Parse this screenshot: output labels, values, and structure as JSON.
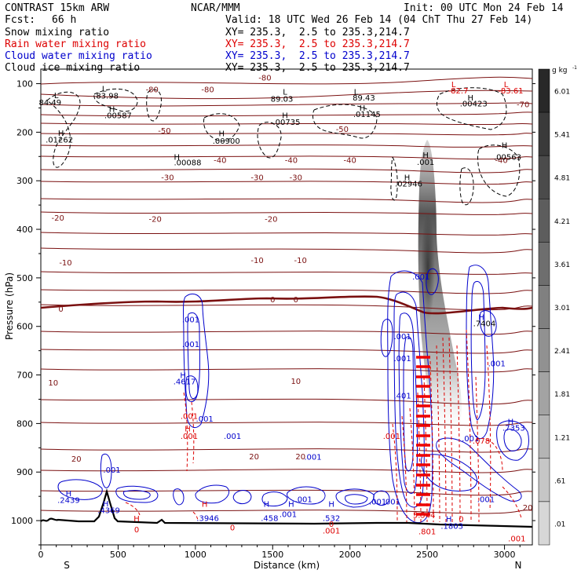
{
  "header": {
    "model": "CONTRAST 15km ARW",
    "center": "NCAR/MMM",
    "init": "Init: 00 UTC Mon 24 Feb 14",
    "fcst_label": "Fcst:",
    "fcst_value": "66 h",
    "valid": "Valid: 18 UTC Wed 26 Feb 14 (04 ChT Thu 27 Feb 14)",
    "fields": [
      {
        "name": "Snow mixing ratio",
        "xy": "XY= 235.3,  2.5 to 235.3,214.7",
        "color": "#000000"
      },
      {
        "name": "Rain water mixing ratio",
        "xy": "XY= 235.3,  2.5 to 235.3,214.7",
        "color": "#dd0000"
      },
      {
        "name": "Cloud water mixing ratio",
        "xy": "XY= 235.3,  2.5 to 235.3,214.7",
        "color": "#0000cc"
      },
      {
        "name": "Cloud ice mixing ratio",
        "xy": "XY= 235.3,  2.5 to 235.3,214.7",
        "color": "#000000"
      }
    ]
  },
  "chart_data": {
    "type": "cross-section",
    "xlabel": "Distance (km)",
    "ylabel": "Pressure (hPa)",
    "xlim": [
      0,
      3180
    ],
    "ylim": [
      1050,
      70
    ],
    "x_ticks": [
      0,
      500,
      1000,
      1500,
      2000,
      2500,
      3000
    ],
    "y_ticks": [
      100,
      200,
      300,
      400,
      500,
      600,
      700,
      800,
      900,
      1000
    ],
    "x_end_labels": {
      "left": "S",
      "right": "N"
    },
    "colorbar": {
      "unit": "g kg",
      "unit_exp": "-1",
      "labels": [
        "6.01",
        "5.41",
        "4.81",
        "4.21",
        "3.61",
        "3.01",
        "2.41",
        "1.81",
        "1.21",
        ".61",
        ".01"
      ]
    },
    "temperature_labels": [
      {
        "text": "-80",
        "x": 1450,
        "p": 87
      },
      {
        "text": "-80",
        "x": 720,
        "p": 111
      },
      {
        "text": "-80",
        "x": 1080,
        "p": 111
      },
      {
        "text": "-70",
        "x": 3120,
        "p": 142
      },
      {
        "text": "-50",
        "x": 800,
        "p": 196
      },
      {
        "text": "-50",
        "x": 1950,
        "p": 193
      },
      {
        "text": "-40",
        "x": 1160,
        "p": 257
      },
      {
        "text": "-40",
        "x": 1620,
        "p": 257
      },
      {
        "text": "-40",
        "x": 2000,
        "p": 257
      },
      {
        "text": "-40",
        "x": 2980,
        "p": 257
      },
      {
        "text": "-30",
        "x": 820,
        "p": 292
      },
      {
        "text": "-30",
        "x": 1400,
        "p": 292
      },
      {
        "text": "-30",
        "x": 1650,
        "p": 292
      },
      {
        "text": "-20",
        "x": 110,
        "p": 376
      },
      {
        "text": "-20",
        "x": 740,
        "p": 378
      },
      {
        "text": "-20",
        "x": 1490,
        "p": 378
      },
      {
        "text": "-10",
        "x": 160,
        "p": 468
      },
      {
        "text": "-10",
        "x": 1400,
        "p": 463
      },
      {
        "text": "-10",
        "x": 1680,
        "p": 463
      },
      {
        "text": "0",
        "x": 130,
        "p": 563
      },
      {
        "text": "0",
        "x": 1500,
        "p": 544
      },
      {
        "text": "0",
        "x": 1650,
        "p": 544
      },
      {
        "text": "10",
        "x": 80,
        "p": 715
      },
      {
        "text": "10",
        "x": 1650,
        "p": 712
      },
      {
        "text": "20",
        "x": 230,
        "p": 872
      },
      {
        "text": "20",
        "x": 1380,
        "p": 867
      },
      {
        "text": "20",
        "x": 1680,
        "p": 867
      },
      {
        "text": "20",
        "x": 3150,
        "p": 972
      }
    ],
    "extremum_labels": [
      {
        "text": "L",
        "x": 100,
        "p": 123,
        "color": "#000000"
      },
      {
        "text": "84.49",
        "x": 60,
        "p": 138,
        "color": "#000000"
      },
      {
        "text": "L",
        "x": 410,
        "p": 110,
        "color": "#000000"
      },
      {
        "text": "83.98",
        "x": 430,
        "p": 124,
        "color": "#000000"
      },
      {
        "text": "H",
        "x": 460,
        "p": 152,
        "color": "#000000"
      },
      {
        "text": ".00587",
        "x": 500,
        "p": 165,
        "color": "#000000"
      },
      {
        "text": "H",
        "x": 130,
        "p": 201,
        "color": "#000000"
      },
      {
        "text": ".01262",
        "x": 120,
        "p": 215,
        "color": "#000000"
      },
      {
        "text": "L",
        "x": 1580,
        "p": 116,
        "color": "#000000"
      },
      {
        "text": "89.03",
        "x": 1560,
        "p": 131,
        "color": "#000000"
      },
      {
        "text": "H",
        "x": 1580,
        "p": 165,
        "color": "#000000"
      },
      {
        "text": ".00735",
        "x": 1590,
        "p": 178,
        "color": "#000000"
      },
      {
        "text": "L",
        "x": 2040,
        "p": 116,
        "color": "#000000"
      },
      {
        "text": "89.43",
        "x": 2090,
        "p": 128,
        "color": "#000000"
      },
      {
        "text": "H",
        "x": 2080,
        "p": 149,
        "color": "#000000"
      },
      {
        "text": ".01145",
        "x": 2110,
        "p": 162,
        "color": "#000000"
      },
      {
        "text": "H",
        "x": 1170,
        "p": 202,
        "color": "#000000"
      },
      {
        "text": ".00900",
        "x": 1200,
        "p": 217,
        "color": "#000000"
      },
      {
        "text": "H",
        "x": 880,
        "p": 250,
        "color": "#000000"
      },
      {
        "text": ".00088",
        "x": 950,
        "p": 262,
        "color": "#000000"
      },
      {
        "text": "L",
        "x": 2670,
        "p": 101,
        "color": "#dd0000"
      },
      {
        "text": "-82.7",
        "x": 2700,
        "p": 114,
        "color": "#dd0000"
      },
      {
        "text": "L",
        "x": 3010,
        "p": 101,
        "color": "#dd0000"
      },
      {
        "text": "-83.61",
        "x": 3040,
        "p": 114,
        "color": "#dd0000"
      },
      {
        "text": "H",
        "x": 2780,
        "p": 128,
        "color": "#000000"
      },
      {
        "text": ".00423",
        "x": 2800,
        "p": 140,
        "color": "#000000"
      },
      {
        "text": "H",
        "x": 3000,
        "p": 226,
        "color": "#000000"
      },
      {
        "text": ".00563",
        "x": 3020,
        "p": 250,
        "color": "#000000"
      },
      {
        "text": "H",
        "x": 2490,
        "p": 246,
        "color": "#000000"
      },
      {
        "text": ".001",
        "x": 2490,
        "p": 261,
        "color": "#000000"
      },
      {
        "text": "H",
        "x": 2370,
        "p": 292,
        "color": "#000000"
      },
      {
        "text": ".02946",
        "x": 2380,
        "p": 305,
        "color": "#000000"
      },
      {
        "text": ".001",
        "x": 970,
        "p": 585,
        "color": "#0000cc"
      },
      {
        "text": ".001",
        "x": 970,
        "p": 636,
        "color": "#0000cc"
      },
      {
        "text": "H",
        "x": 920,
        "p": 700,
        "color": "#0000cc"
      },
      {
        "text": ".4617",
        "x": 930,
        "p": 713,
        "color": "#0000cc"
      },
      {
        "text": ".001",
        "x": 960,
        "p": 784,
        "color": "#dd0000"
      },
      {
        "text": ".001",
        "x": 1060,
        "p": 790,
        "color": "#0000cc"
      },
      {
        "text": "H",
        "x": 950,
        "p": 810,
        "color": "#dd0000"
      },
      {
        "text": ".001",
        "x": 960,
        "p": 825,
        "color": "#dd0000"
      },
      {
        "text": ".001",
        "x": 1240,
        "p": 825,
        "color": "#0000cc"
      },
      {
        "text": ".001",
        "x": 1760,
        "p": 868,
        "color": "#0000cc"
      },
      {
        "text": ".001",
        "x": 2460,
        "p": 497,
        "color": "#0000cc"
      },
      {
        "text": ".001",
        "x": 2340,
        "p": 620,
        "color": "#0000cc"
      },
      {
        "text": ".001",
        "x": 2340,
        "p": 665,
        "color": "#0000cc"
      },
      {
        "text": ".401",
        "x": 2340,
        "p": 742,
        "color": "#0000cc"
      },
      {
        "text": ".001",
        "x": 2270,
        "p": 825,
        "color": "#dd0000"
      },
      {
        "text": ".001",
        "x": 2270,
        "p": 960,
        "color": "#0000cc"
      },
      {
        "text": "5.544",
        "x": 2480,
        "p": 988,
        "color": "#dd0000"
      },
      {
        "text": ".801",
        "x": 2500,
        "p": 1022,
        "color": "#dd0000"
      },
      {
        "text": "H",
        "x": 2850,
        "p": 580,
        "color": "#0000cc"
      },
      {
        "text": ".7404",
        "x": 2870,
        "p": 593,
        "color": "#000000"
      },
      {
        "text": ".001",
        "x": 2950,
        "p": 676,
        "color": "#0000cc"
      },
      {
        "text": ".001",
        "x": 2780,
        "p": 830,
        "color": "#0000cc"
      },
      {
        "text": ".078",
        "x": 2850,
        "p": 835,
        "color": "#dd0000"
      },
      {
        "text": "H",
        "x": 3040,
        "p": 795,
        "color": "#0000cc"
      },
      {
        "text": ".7353",
        "x": 3060,
        "p": 808,
        "color": "#0000cc"
      },
      {
        "text": ".001",
        "x": 2880,
        "p": 955,
        "color": "#0000cc"
      },
      {
        "text": ".001",
        "x": 3080,
        "p": 1036,
        "color": "#dd0000"
      },
      {
        "text": "H",
        "x": 2640,
        "p": 996,
        "color": "#0000cc"
      },
      {
        "text": "0",
        "x": 2720,
        "p": 996,
        "color": "#dd0000"
      },
      {
        "text": ".1803",
        "x": 2660,
        "p": 1010,
        "color": "#0000cc"
      },
      {
        "text": "H",
        "x": 180,
        "p": 943,
        "color": "#0000cc"
      },
      {
        "text": ".2439",
        "x": 180,
        "p": 957,
        "color": "#0000cc"
      },
      {
        "text": ".001",
        "x": 460,
        "p": 895,
        "color": "#0000cc"
      },
      {
        "text": "H",
        "x": 420,
        "p": 964,
        "color": "#0000cc"
      },
      {
        "text": ".4369",
        "x": 440,
        "p": 978,
        "color": "#0000cc"
      },
      {
        "text": "H",
        "x": 620,
        "p": 995,
        "color": "#dd0000"
      },
      {
        "text": "0",
        "x": 620,
        "p": 1018,
        "color": "#dd0000"
      },
      {
        "text": "H",
        "x": 1060,
        "p": 965,
        "color": "#dd0000"
      },
      {
        "text": ".3946",
        "x": 1080,
        "p": 994,
        "color": "#0000cc"
      },
      {
        "text": "0",
        "x": 1240,
        "p": 1014,
        "color": "#dd0000"
      },
      {
        "text": "H",
        "x": 1460,
        "p": 965,
        "color": "#0000cc"
      },
      {
        "text": ".458",
        "x": 1480,
        "p": 994,
        "color": "#0000cc"
      },
      {
        "text": "H",
        "x": 1620,
        "p": 965,
        "color": "#0000cc"
      },
      {
        "text": ".001",
        "x": 1700,
        "p": 955,
        "color": "#0000cc"
      },
      {
        "text": ".001",
        "x": 1600,
        "p": 986,
        "color": "#0000cc"
      },
      {
        "text": "H",
        "x": 1880,
        "p": 965,
        "color": "#0000cc"
      },
      {
        "text": ".532",
        "x": 1880,
        "p": 994,
        "color": "#0000cc"
      },
      {
        "text": "0",
        "x": 1880,
        "p": 1006,
        "color": "#dd0000"
      },
      {
        "text": ".001",
        "x": 1880,
        "p": 1020,
        "color": "#dd0000"
      },
      {
        "text": ".001",
        "x": 2180,
        "p": 960,
        "color": "#0000cc"
      }
    ]
  }
}
